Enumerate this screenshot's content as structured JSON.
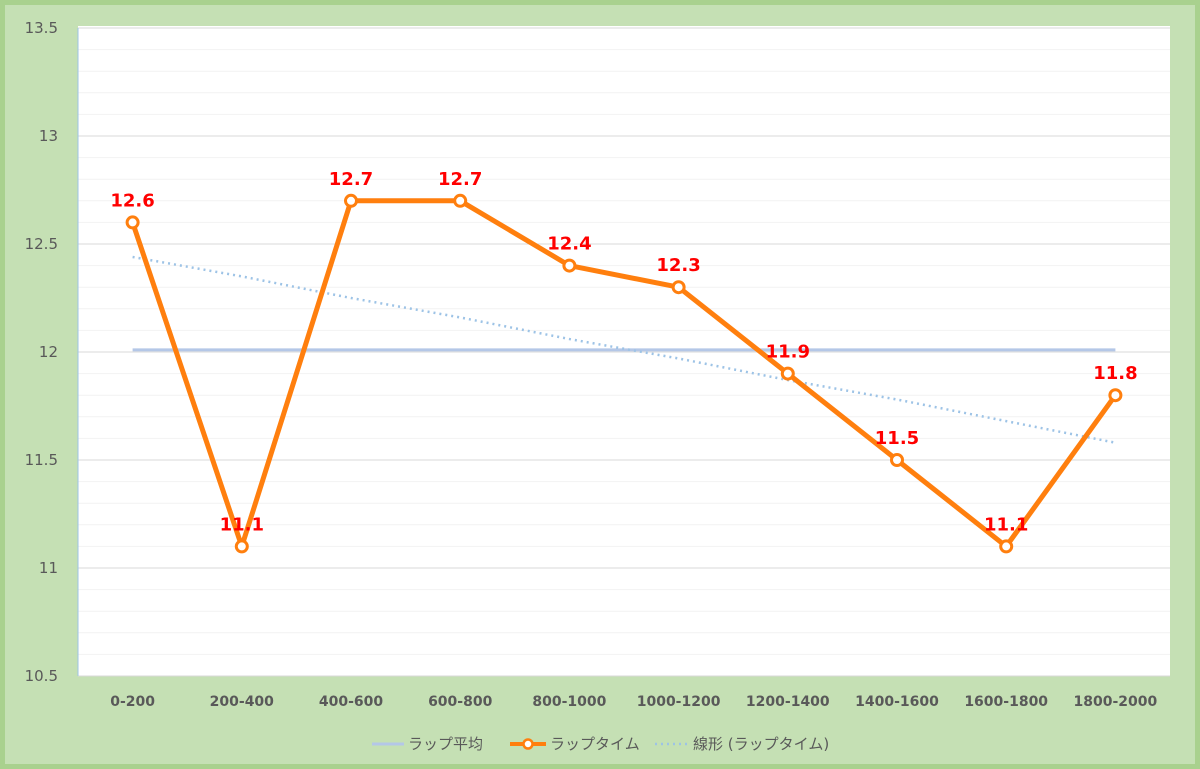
{
  "chart_data": {
    "type": "line",
    "categories": [
      "0-200",
      "200-400",
      "400-600",
      "600-800",
      "800-1000",
      "1000-1200",
      "1200-1400",
      "1400-1600",
      "1600-1800",
      "1800-2000"
    ],
    "series": [
      {
        "name": "ラップ平均",
        "values": [
          12.01,
          12.01,
          12.01,
          12.01,
          12.01,
          12.01,
          12.01,
          12.01,
          12.01,
          12.01
        ],
        "color": "#b4c7e7",
        "style": "solid"
      },
      {
        "name": "ラップタイム",
        "values": [
          12.6,
          11.1,
          12.7,
          12.7,
          12.4,
          12.3,
          11.9,
          11.5,
          11.1,
          11.8
        ],
        "color": "#ff7f0e",
        "style": "solid-markers",
        "data_labels": true
      },
      {
        "name": "線形 (ラップタイム)",
        "values": [
          12.44,
          12.35,
          12.25,
          12.16,
          12.06,
          11.97,
          11.87,
          11.78,
          11.68,
          11.58
        ],
        "color": "#9dc3e6",
        "style": "dotted"
      }
    ],
    "ylim": [
      10.5,
      13.5
    ],
    "yticks": [
      "10.5",
      "11",
      "11.5",
      "12",
      "12.5",
      "13",
      "13.5"
    ],
    "ytick_values": [
      10.5,
      11,
      11.5,
      12,
      12.5,
      13,
      13.5
    ],
    "minor_grid_step": 0.1,
    "grid": true,
    "legend_position": "bottom",
    "title": "",
    "xlabel": "",
    "ylabel": "",
    "data_label_color": "#ff0000",
    "background_color": "#c5e0b4"
  }
}
